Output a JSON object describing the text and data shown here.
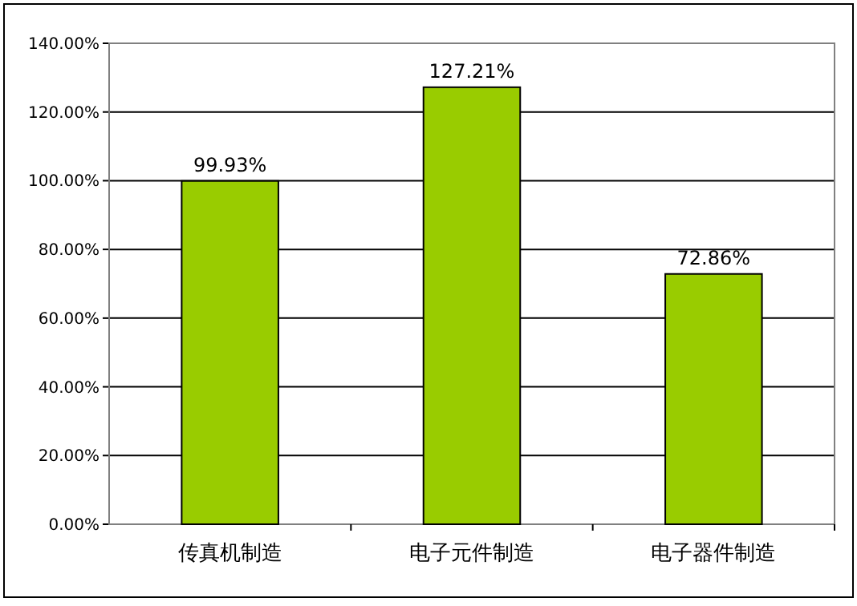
{
  "chart_data": {
    "type": "bar",
    "categories": [
      "传真机制造",
      "电子元件制造",
      "电子器件制造"
    ],
    "values": [
      99.93,
      127.21,
      72.86
    ],
    "value_labels": [
      "99.93%",
      "127.21%",
      "72.86%"
    ],
    "color": "#99cc00",
    "ylim": [
      0,
      140
    ],
    "yticks": [
      {
        "value": 0,
        "label": "0.00%"
      },
      {
        "value": 20,
        "label": "20.00%"
      },
      {
        "value": 40,
        "label": "40.00%"
      },
      {
        "value": 60,
        "label": "60.00%"
      },
      {
        "value": 80,
        "label": "80.00%"
      },
      {
        "value": 100,
        "label": "100.00%"
      },
      {
        "value": 120,
        "label": "120.00%"
      },
      {
        "value": 140,
        "label": "140.00%"
      }
    ],
    "grid": "y"
  }
}
